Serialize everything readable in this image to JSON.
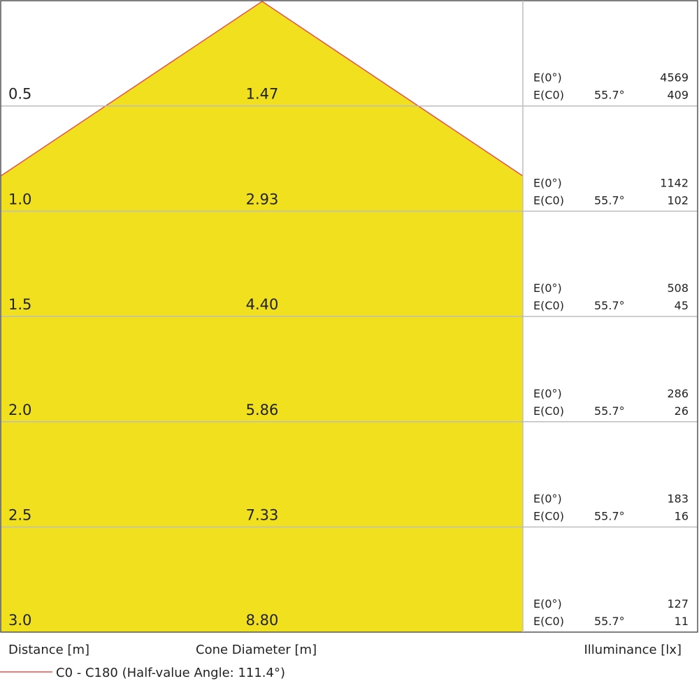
{
  "rows": [
    {
      "distance": "0.5",
      "diameter": "1.47",
      "e0_label": "E(0°)",
      "e0": "4569",
      "ec0_label": "E(C0)",
      "angle": "55.7°",
      "ec0": "409"
    },
    {
      "distance": "1.0",
      "diameter": "2.93",
      "e0_label": "E(0°)",
      "e0": "1142",
      "ec0_label": "E(C0)",
      "angle": "55.7°",
      "ec0": "102"
    },
    {
      "distance": "1.5",
      "diameter": "4.40",
      "e0_label": "E(0°)",
      "e0": "508",
      "ec0_label": "E(C0)",
      "angle": "55.7°",
      "ec0": "45"
    },
    {
      "distance": "2.0",
      "diameter": "5.86",
      "e0_label": "E(0°)",
      "e0": "286",
      "ec0_label": "E(C0)",
      "angle": "55.7°",
      "ec0": "26"
    },
    {
      "distance": "2.5",
      "diameter": "7.33",
      "e0_label": "E(0°)",
      "e0": "183",
      "ec0_label": "E(C0)",
      "angle": "55.7°",
      "ec0": "16"
    },
    {
      "distance": "3.0",
      "diameter": "8.80",
      "e0_label": "E(0°)",
      "e0": "127",
      "ec0_label": "E(C0)",
      "angle": "55.7°",
      "ec0": "11"
    }
  ],
  "footer": {
    "distance": "Distance [m]",
    "diameter": "Cone Diameter [m]",
    "illuminance": "Illuminance [lx]"
  },
  "legend": {
    "label": "C0 - C180 (Half-value Angle: 111.4°)"
  }
}
